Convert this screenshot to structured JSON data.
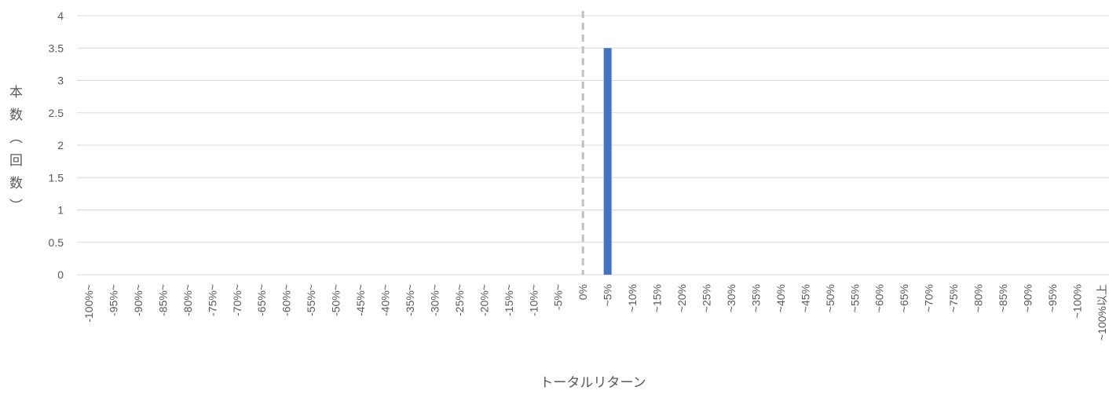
{
  "chart_data": {
    "type": "bar",
    "categories": [
      "-100%~",
      "-95%~",
      "-90%~",
      "-85%~",
      "-80%~",
      "-75%~",
      "-70%~",
      "-65%~",
      "-60%~",
      "-55%~",
      "-50%~",
      "-45%~",
      "-40%~",
      "-35%~",
      "-30%~",
      "-25%~",
      "-20%~",
      "-15%~",
      "-10%~",
      "-5%~",
      "0%",
      "~5%",
      "~10%",
      "~15%",
      "~20%",
      "~25%",
      "~30%",
      "~35%",
      "~40%",
      "~45%",
      "~50%",
      "~55%",
      "~60%",
      "~65%",
      "~70%",
      "~75%",
      "~80%",
      "~85%",
      "~90%",
      "~95%",
      "~100%",
      "~100%以上"
    ],
    "values": [
      0,
      0,
      0,
      0,
      0,
      0,
      0,
      0,
      0,
      0,
      0,
      0,
      0,
      0,
      0,
      0,
      0,
      0,
      0,
      0,
      0,
      3.5,
      0,
      0,
      0,
      0,
      0,
      0,
      0,
      0,
      0,
      0,
      0,
      0,
      0,
      0,
      0,
      0,
      0,
      0,
      0,
      0
    ],
    "xlabel": "トータルリターン",
    "ylabel": "本数（回数）",
    "ylim": [
      0,
      4
    ],
    "yticks": [
      0,
      0.5,
      1,
      1.5,
      2,
      2.5,
      3,
      3.5,
      4
    ],
    "grid": {
      "horizontal": true,
      "vertical": false
    },
    "reference_line": {
      "x": "0%",
      "dashed": true
    },
    "colors": {
      "bar": "#4472C4",
      "grid": "#D9D9D9",
      "reference_line": "#BFBFBF",
      "text": "#595959"
    }
  }
}
